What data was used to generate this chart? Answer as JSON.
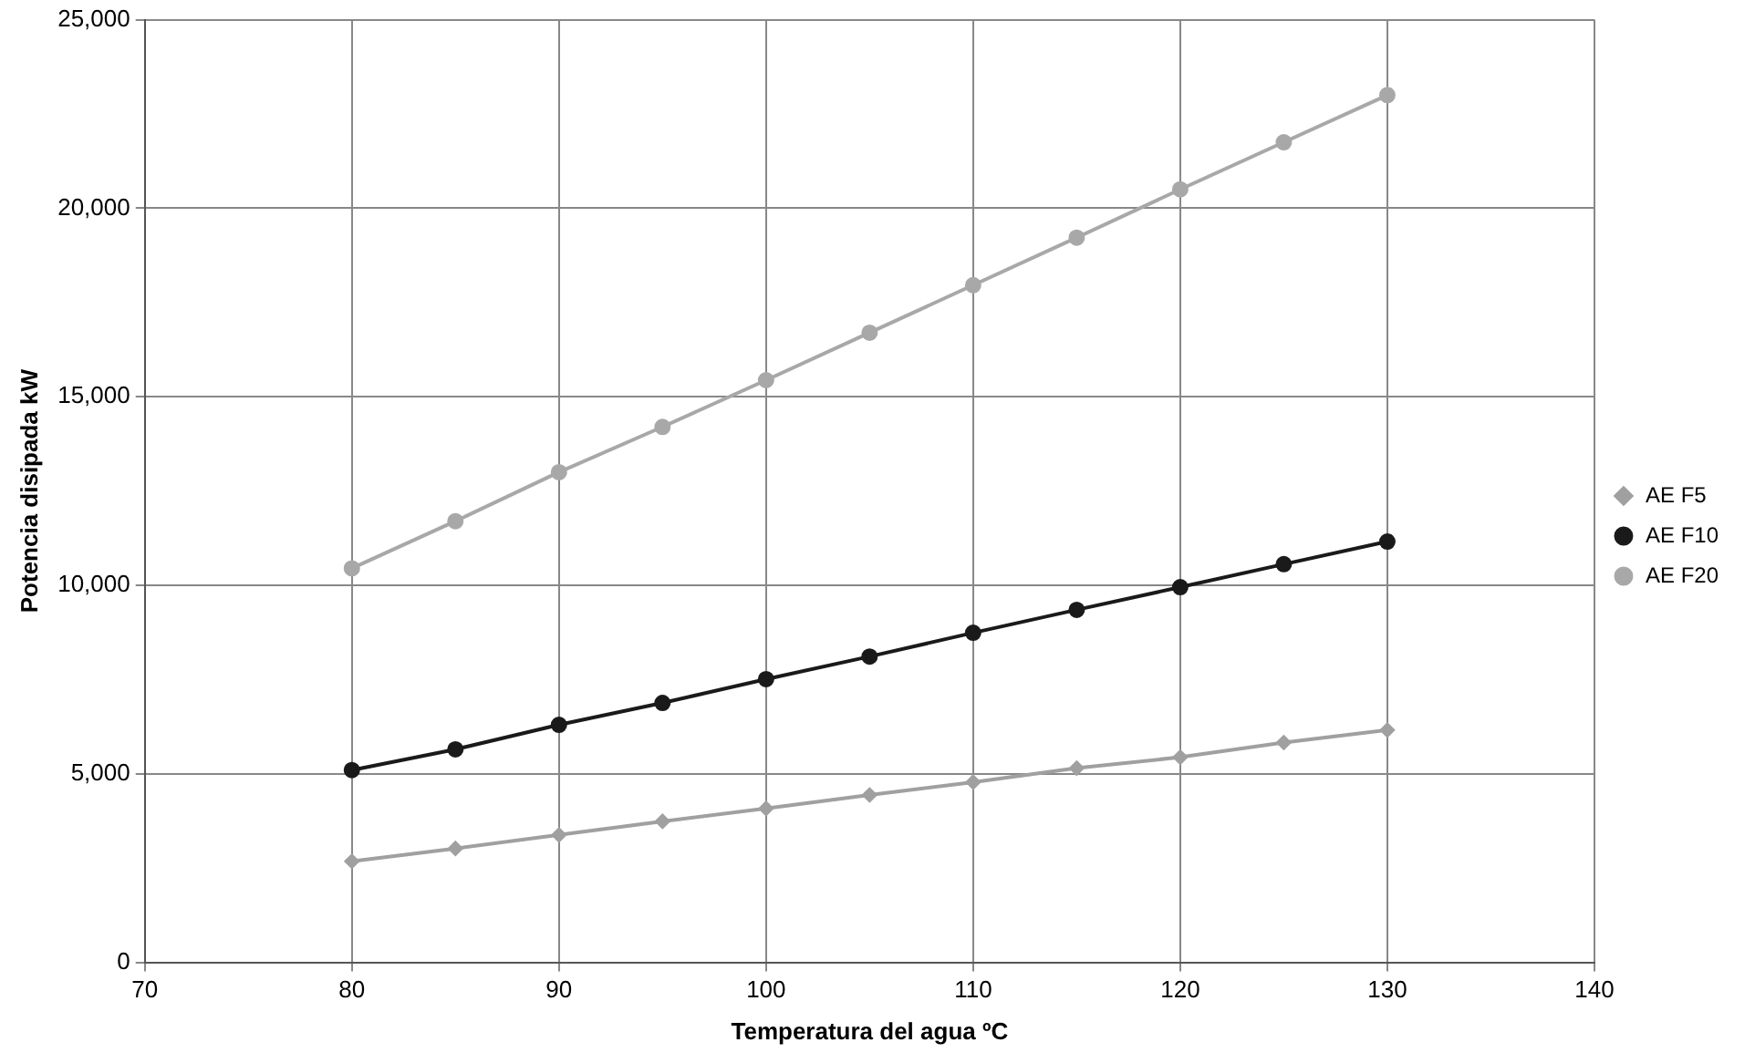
{
  "chart_data": {
    "type": "line",
    "xlabel": "Temperatura del agua ºC",
    "ylabel": "Potencia disipada kW",
    "x": [
      80,
      85,
      90,
      95,
      100,
      105,
      110,
      115,
      120,
      125,
      130
    ],
    "series": [
      {
        "name": "AE F5",
        "color": "#a0a0a0",
        "marker": "diamond",
        "values": [
          2680,
          3020,
          3380,
          3740,
          4080,
          4440,
          4780,
          5150,
          5440,
          5830,
          6160
        ]
      },
      {
        "name": "AE F10",
        "color": "#1a1a1a",
        "marker": "circle",
        "values": [
          5100,
          5650,
          6300,
          6880,
          7510,
          8110,
          8740,
          9350,
          9950,
          10560,
          11160
        ]
      },
      {
        "name": "AE F20",
        "color": "#a8a8a8",
        "marker": "circle",
        "values": [
          10450,
          11700,
          13000,
          14200,
          15440,
          16700,
          17960,
          19220,
          20500,
          21750,
          23000
        ]
      }
    ],
    "xlim": [
      70,
      140
    ],
    "xticks": [
      70,
      80,
      90,
      100,
      110,
      120,
      130,
      140
    ],
    "ylim": [
      0,
      25000
    ],
    "yticks": [
      {
        "value": 0,
        "label": "0"
      },
      {
        "value": 5000,
        "label": "5,000"
      },
      {
        "value": 10000,
        "label": "10,000"
      },
      {
        "value": 15000,
        "label": "15,000"
      },
      {
        "value": 20000,
        "label": "20,000"
      },
      {
        "value": 25000,
        "label": "25,000"
      }
    ],
    "grid": true,
    "legend": "right",
    "line_style": "solid"
  }
}
